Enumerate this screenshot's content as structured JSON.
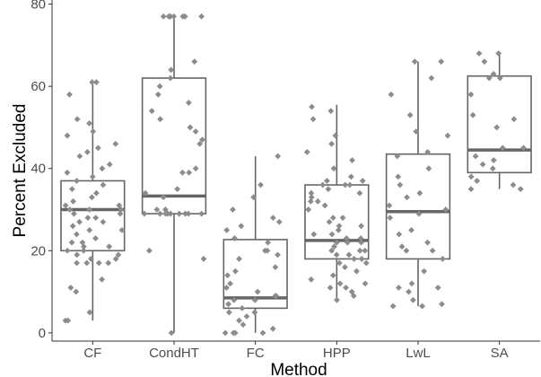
{
  "chart_data": {
    "type": "boxplot",
    "xlabel": "Method",
    "ylabel": "Percent Excluded",
    "ylim": [
      -2,
      81
    ],
    "yticks": [
      0,
      20,
      40,
      60,
      80
    ],
    "grid": false,
    "colors": {
      "box": "#666666",
      "point": "#8c8c8c",
      "axis": "#333333"
    },
    "categories": [
      "CF",
      "CondHT",
      "FC",
      "HPP",
      "LwL",
      "SA"
    ],
    "boxes": [
      {
        "name": "CF",
        "min": 3,
        "q1": 20,
        "median": 30,
        "q3": 37,
        "max": 61
      },
      {
        "name": "CondHT",
        "min": 0,
        "q1": 29,
        "median": 33.3,
        "q3": 62,
        "max": 77
      },
      {
        "name": "FC",
        "min": 0,
        "q1": 6,
        "median": 8.5,
        "q3": 22.7,
        "max": 43
      },
      {
        "name": "HPP",
        "min": 8,
        "q1": 18,
        "median": 22.5,
        "q3": 36,
        "max": 55.5
      },
      {
        "name": "LwL",
        "min": 6.5,
        "q1": 18,
        "median": 29.5,
        "q3": 43.5,
        "max": 66
      },
      {
        "name": "SA",
        "min": 35,
        "q1": 39,
        "median": 44.5,
        "q3": 62.5,
        "max": 68
      }
    ],
    "points": [
      {
        "category": "CF",
        "values": [
          61,
          61,
          58,
          52,
          51,
          49,
          48,
          46,
          45,
          44,
          43,
          41,
          40,
          39,
          38,
          37,
          36,
          35,
          34,
          33,
          32,
          31,
          31,
          30,
          30,
          30,
          29,
          29,
          28,
          28,
          27,
          27,
          26,
          25,
          25,
          24,
          23,
          22,
          22,
          21,
          21,
          20,
          20,
          19,
          19,
          18,
          18,
          17,
          17,
          17,
          17,
          13,
          11,
          10,
          5,
          3,
          3
        ]
      },
      {
        "category": "CondHT",
        "values": [
          77,
          77,
          77,
          77,
          77,
          77,
          77,
          77,
          66,
          64,
          62,
          60,
          58,
          56,
          54,
          52,
          50,
          49,
          47,
          46,
          40,
          39,
          39,
          35,
          34,
          33,
          30,
          30,
          29,
          29,
          29,
          29,
          29,
          29,
          29,
          29,
          29,
          20,
          18,
          0
        ]
      },
      {
        "category": "FC",
        "values": [
          43,
          36,
          33,
          30,
          28,
          27,
          26,
          25,
          23,
          22,
          20,
          20,
          19,
          18,
          16,
          15,
          14,
          12,
          11,
          10,
          9,
          9,
          8,
          8,
          7,
          6,
          5,
          5,
          4,
          3,
          2,
          1,
          0,
          0,
          0,
          0
        ]
      },
      {
        "category": "HPP",
        "values": [
          55,
          54,
          52,
          48,
          46,
          44,
          42,
          40,
          38,
          37,
          37,
          36,
          36,
          36,
          35,
          34,
          34,
          33,
          32,
          32,
          31,
          30,
          28,
          28,
          27,
          26,
          26,
          25,
          24,
          24,
          23,
          23,
          22,
          22,
          22,
          21,
          20,
          20,
          20,
          19,
          19,
          18,
          18,
          17,
          17,
          16,
          15,
          14,
          13,
          12,
          12,
          11,
          11,
          10,
          9,
          8
        ]
      },
      {
        "category": "LwL",
        "values": [
          66,
          66,
          62,
          58,
          53,
          49,
          48,
          44,
          43,
          40,
          38,
          36,
          34,
          33,
          31,
          30,
          29,
          28,
          25,
          24,
          22,
          21,
          20,
          20,
          18,
          15,
          12,
          11,
          11,
          10,
          8,
          7,
          6.5,
          6.5
        ]
      },
      {
        "category": "SA",
        "values": [
          68,
          68,
          66,
          63,
          62,
          62,
          58,
          53,
          52,
          50,
          45,
          45,
          43,
          42,
          41,
          40,
          38,
          37,
          36,
          35,
          35
        ]
      }
    ]
  }
}
